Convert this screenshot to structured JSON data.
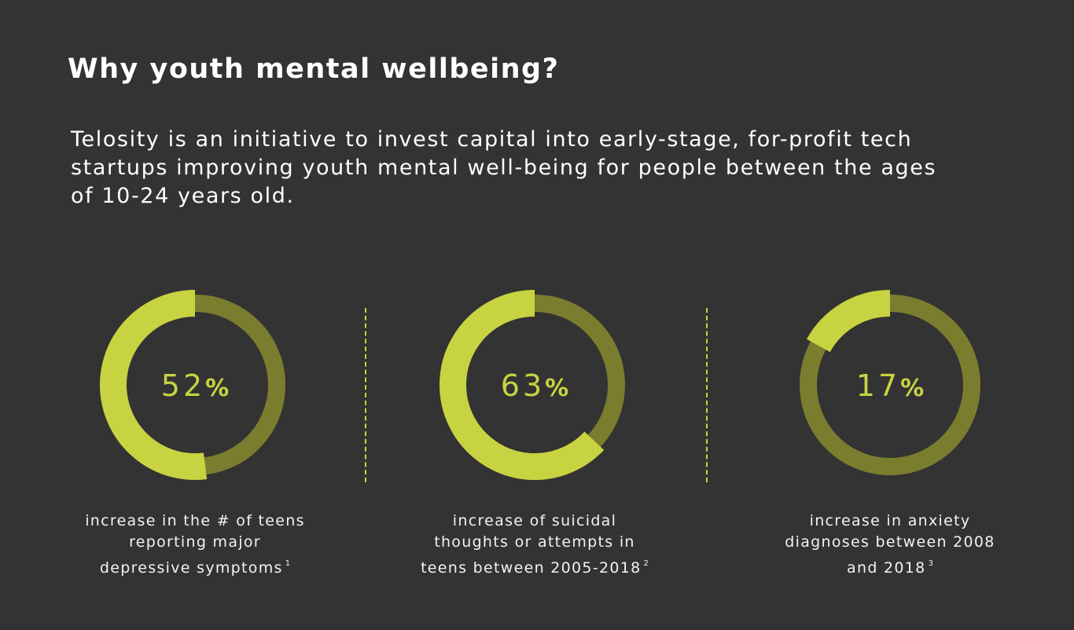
{
  "colors": {
    "background": "#333333",
    "ring_fill": "#c8d341",
    "ring_track": "#7b7d2e",
    "divider": "#c8d341",
    "text": "#ffffff"
  },
  "header": {
    "title": "Why youth mental wellbeing?"
  },
  "intro": {
    "lines": [
      "Telosity is an initiative to invest capital into early-stage, for-profit tech",
      "startups improving youth mental well-being for people between the ages",
      "of 10-24 years old."
    ]
  },
  "chart_data": [
    {
      "type": "pie",
      "value": 52,
      "unit": "%",
      "caption_lines": [
        "increase in the # of teens",
        "reporting major",
        "depressive symptoms"
      ],
      "footnote": "1"
    },
    {
      "type": "pie",
      "value": 63,
      "unit": "%",
      "caption_lines": [
        "increase of suicidal",
        "thoughts or attempts in",
        "teens between 2005-2018"
      ],
      "footnote": "2"
    },
    {
      "type": "pie",
      "value": 17,
      "unit": "%",
      "caption_lines": [
        "increase in anxiety",
        "diagnoses between 2008",
        "and 2018"
      ],
      "footnote": "3"
    }
  ]
}
